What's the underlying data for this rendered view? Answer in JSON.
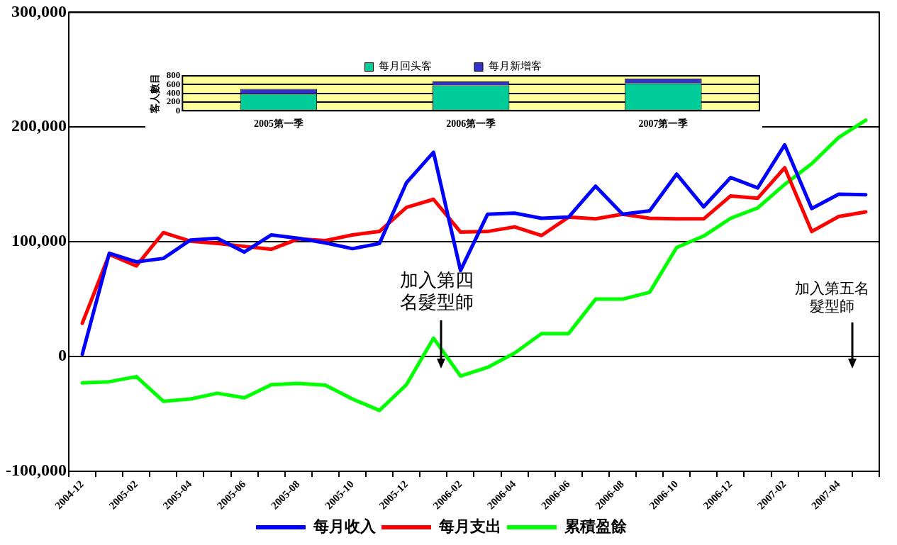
{
  "chart_data": [
    {
      "type": "line",
      "categories": [
        "2004-12",
        null,
        "2005-02",
        null,
        "2005-04",
        null,
        "2005-06",
        null,
        "2005-08",
        null,
        "2005-10",
        null,
        "2005-12",
        null,
        "2006-02",
        null,
        "2006-04",
        null,
        "2006-06",
        null,
        "2006-08",
        null,
        "2006-10",
        null,
        "2006-12",
        null,
        "2007-02",
        null,
        "2007-04",
        null
      ],
      "series": [
        {
          "name": "每月收入",
          "color": "#0000ff",
          "values": [
            2000,
            90000,
            82500,
            85500,
            101500,
            103000,
            91000,
            106000,
            103000,
            99000,
            94000,
            98500,
            151500,
            178000,
            75000,
            124000,
            125000,
            120500,
            121500,
            148500,
            124000,
            127000,
            159000,
            130500,
            156000,
            147000,
            184500,
            129000,
            141500,
            141000
          ]
        },
        {
          "name": "每月支出",
          "color": "#ff0000",
          "values": [
            29000,
            89000,
            79000,
            108000,
            100500,
            98500,
            96000,
            93500,
            102500,
            101000,
            106000,
            109000,
            130000,
            137000,
            108500,
            109000,
            113000,
            105500,
            121500,
            120000,
            124000,
            120500,
            120000,
            120000,
            140000,
            138000,
            164500,
            109000,
            122000,
            126000
          ]
        },
        {
          "name": "累積盈餘",
          "color": "#00ff00",
          "values": [
            -23000,
            -22000,
            -17500,
            -39000,
            -37000,
            -32000,
            -36000,
            -24500,
            -23500,
            -25000,
            -37000,
            -47000,
            -24500,
            16000,
            -17000,
            -9500,
            3000,
            20000,
            20000,
            50000,
            50000,
            56000,
            95000,
            105000,
            120500,
            129500,
            150000,
            168000,
            191000,
            206000
          ]
        }
      ],
      "ylim": [
        -100000,
        300000
      ],
      "yticks": [
        {
          "value": -100000,
          "label": "-100,000"
        },
        0,
        {
          "value": 100000,
          "label": "100,000"
        },
        {
          "value": 200000,
          "label": "200,000"
        },
        {
          "value": 300000,
          "label": "300,000"
        }
      ],
      "grid": "y",
      "legend": "bottom",
      "annotations": [
        "加入第四名髮型師",
        "加入第五名髮型師"
      ]
    },
    {
      "type": "bar",
      "stacked": true,
      "categories": [
        "2005第一季",
        "2006第一季",
        "2007第一季"
      ],
      "series": [
        {
          "name": "每月回头客",
          "color": "#00cc99",
          "values": [
            390,
            580,
            630
          ]
        },
        {
          "name": "每月新增客",
          "color": "#3333cc",
          "values": [
            110,
            90,
            110
          ]
        }
      ],
      "ylim": [
        0,
        800
      ],
      "yticks": [
        0,
        200,
        400,
        600,
        800
      ],
      "ylabel": "客人數目",
      "grid": "y",
      "legend": "top"
    }
  ]
}
